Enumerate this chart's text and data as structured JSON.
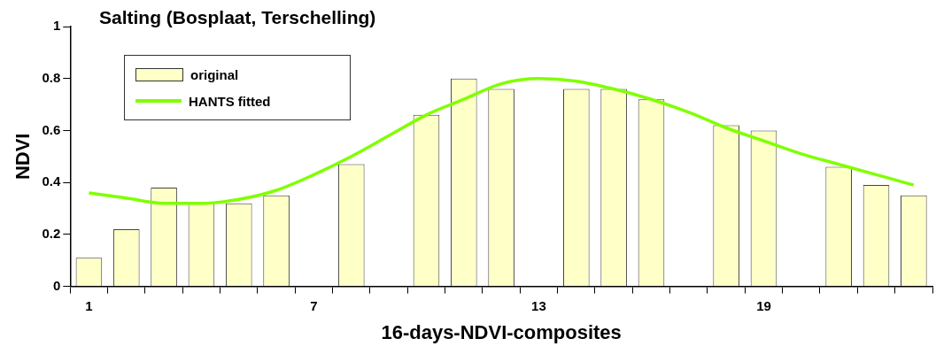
{
  "chart_data": {
    "type": "bar",
    "title": "Salting (Bosplaat, Terschelling)",
    "xlabel": "16-days-NDVI-composites",
    "ylabel": "NDVI",
    "categories": [
      "1",
      null,
      null,
      null,
      null,
      null,
      "7",
      null,
      null,
      null,
      null,
      null,
      "13",
      null,
      null,
      null,
      null,
      null,
      "19",
      null,
      null,
      null,
      null
    ],
    "series": [
      {
        "name": "original",
        "color": "#ffffc8",
        "values": [
          0.11,
          0.22,
          0.38,
          0.32,
          0.32,
          0.35,
          null,
          0.47,
          null,
          0.66,
          0.8,
          0.76,
          null,
          0.76,
          0.76,
          0.72,
          null,
          0.62,
          0.6,
          null,
          0.46,
          0.39,
          0.35
        ]
      },
      {
        "name": "HANTS fitted",
        "type": "line",
        "color": "#80ff00",
        "values": [
          0.36,
          0.34,
          0.32,
          0.32,
          0.335,
          0.37,
          0.43,
          0.5,
          0.58,
          0.66,
          0.72,
          0.78,
          0.8,
          0.79,
          0.76,
          0.72,
          0.67,
          0.61,
          0.56,
          0.51,
          0.47,
          0.43,
          0.39
        ]
      }
    ],
    "ylim": [
      0,
      1
    ],
    "yticks": [
      0,
      0.2,
      0.4,
      0.6,
      0.8,
      1
    ],
    "grid": false,
    "legend": "top left",
    "marker": "none",
    "line_style": "solid"
  }
}
